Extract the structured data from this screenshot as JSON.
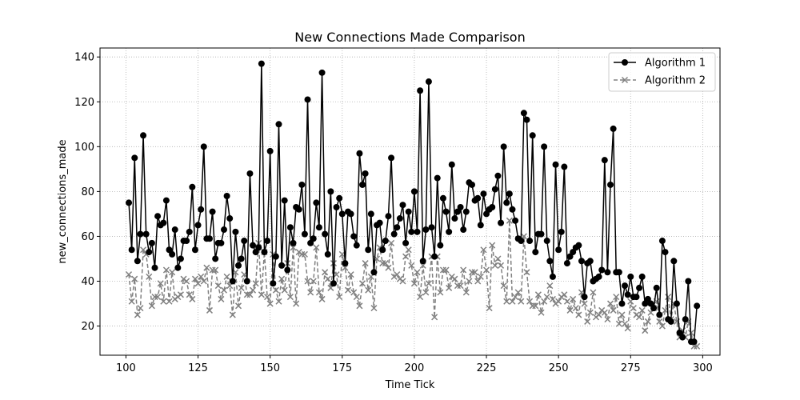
{
  "chart_data": {
    "type": "line",
    "title": "New Connections Made Comparison",
    "xlabel": "Time Tick",
    "ylabel": "new_connections_made",
    "xlim": [
      91,
      306
    ],
    "ylim": [
      7,
      144
    ],
    "xticks": [
      100,
      125,
      150,
      175,
      200,
      225,
      250,
      275,
      300
    ],
    "yticks": [
      20,
      40,
      60,
      80,
      100,
      120,
      140
    ],
    "grid": true,
    "legend_position": "top-right",
    "x_start": 101,
    "series": [
      {
        "name": "Algorithm 1",
        "color": "#000000",
        "marker": "circle",
        "linestyle": "solid",
        "values": [
          75,
          54,
          95,
          49,
          61,
          105,
          61,
          53,
          57,
          46,
          69,
          65,
          66,
          76,
          54,
          52,
          63,
          46,
          50,
          58,
          58,
          62,
          82,
          54,
          65,
          72,
          100,
          59,
          59,
          71,
          50,
          57,
          57,
          63,
          78,
          68,
          40,
          62,
          47,
          50,
          58,
          40,
          88,
          56,
          53,
          55,
          137,
          53,
          58,
          98,
          39,
          51,
          110,
          47,
          76,
          45,
          64,
          57,
          73,
          72,
          83,
          61,
          121,
          57,
          59,
          75,
          64,
          133,
          61,
          52,
          80,
          39,
          73,
          77,
          70,
          48,
          71,
          70,
          60,
          56,
          97,
          83,
          88,
          54,
          70,
          44,
          65,
          66,
          54,
          58,
          69,
          95,
          61,
          64,
          68,
          74,
          57,
          71,
          62,
          80,
          62,
          125,
          49,
          63,
          129,
          64,
          51,
          86,
          56,
          77,
          71,
          62,
          92,
          68,
          71,
          73,
          63,
          71,
          84,
          83,
          76,
          77,
          65,
          79,
          70,
          72,
          73,
          81,
          87,
          66,
          100,
          75,
          79,
          72,
          67,
          59,
          58,
          115,
          112,
          58,
          105,
          53,
          61,
          61,
          100,
          58,
          49,
          42,
          92,
          54,
          62,
          91,
          48,
          51,
          53,
          55,
          56,
          49,
          33,
          48,
          49,
          40,
          41,
          42,
          45,
          94,
          44,
          83,
          108,
          44,
          44,
          30,
          38,
          34,
          42,
          33,
          33,
          37,
          42,
          30,
          32,
          30,
          28,
          37,
          25,
          58,
          53,
          23,
          22,
          49,
          30,
          17,
          15,
          23,
          40,
          13,
          13,
          29
        ]
      },
      {
        "name": "Algorithm 2",
        "color": "#808080",
        "marker": "x",
        "linestyle": "dashed",
        "values": [
          43,
          31,
          41,
          25,
          28,
          54,
          52,
          42,
          29,
          33,
          33,
          39,
          31,
          45,
          31,
          44,
          32,
          33,
          34,
          41,
          40,
          34,
          32,
          41,
          39,
          42,
          40,
          46,
          27,
          45,
          45,
          38,
          32,
          36,
          42,
          38,
          25,
          44,
          29,
          37,
          43,
          34,
          34,
          36,
          39,
          57,
          34,
          53,
          33,
          30,
          52,
          36,
          31,
          41,
          36,
          48,
          33,
          55,
          30,
          53,
          52,
          52,
          40,
          35,
          40,
          55,
          35,
          32,
          44,
          41,
          37,
          48,
          43,
          33,
          52,
          46,
          36,
          43,
          35,
          33,
          29,
          39,
          48,
          36,
          42,
          28,
          50,
          55,
          48,
          48,
          46,
          57,
          42,
          43,
          41,
          40,
          51,
          54,
          47,
          39,
          44,
          33,
          47,
          35,
          39,
          51,
          24,
          51,
          35,
          45,
          45,
          37,
          42,
          41,
          38,
          38,
          45,
          35,
          40,
          44,
          44,
          40,
          42,
          54,
          45,
          28,
          56,
          47,
          50,
          47,
          38,
          31,
          67,
          31,
          33,
          35,
          31,
          60,
          44,
          31,
          29,
          29,
          34,
          26,
          31,
          33,
          38,
          32,
          30,
          31,
          33,
          34,
          31,
          27,
          32,
          28,
          25,
          35,
          30,
          22,
          26,
          35,
          24,
          25,
          27,
          26,
          23,
          30,
          27,
          33,
          21,
          25,
          21,
          19,
          31,
          28,
          25,
          24,
          27,
          18,
          22,
          26,
          28,
          31,
          22,
          20,
          27,
          33,
          23,
          30,
          22,
          15,
          18,
          15,
          22,
          17,
          11,
          11
        ]
      }
    ]
  }
}
